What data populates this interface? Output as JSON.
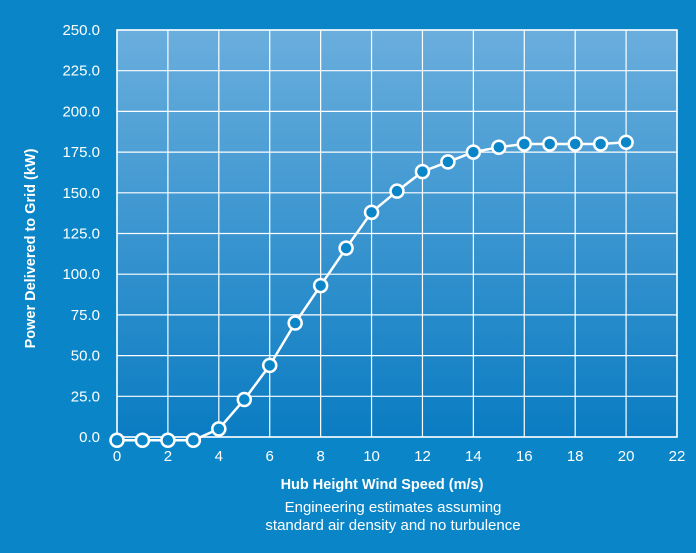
{
  "colors": {
    "background": "#0a86c8",
    "plot_top": "#6aaedd",
    "plot_bottom": "#0a7cc2",
    "line": "#ffffff",
    "marker_fill": "#0a86c8"
  },
  "chart_data": {
    "type": "line",
    "title": "",
    "xlabel": "Hub Height Wind Speed (m/s)",
    "ylabel": "Power Delivered to Grid (kW)",
    "notes": [
      "Engineering estimates assuming",
      "standard air density and no turbulence"
    ],
    "xlim": [
      0,
      22
    ],
    "ylim": [
      0,
      250
    ],
    "xticks": [
      "0",
      "2",
      "4",
      "6",
      "8",
      "10",
      "12",
      "14",
      "16",
      "18",
      "20",
      "22"
    ],
    "yticks": [
      "0.0",
      "25.0",
      "50.0",
      "75.0",
      "100.0",
      "125.0",
      "150.0",
      "175.0",
      "200.0",
      "225.0",
      "250.0"
    ],
    "grid": true,
    "series": [
      {
        "x": [
          0,
          1,
          2,
          3,
          4,
          5,
          6,
          7,
          8,
          9,
          10,
          11,
          12,
          13,
          14,
          15,
          16,
          17,
          18,
          19,
          20
        ],
        "values": [
          -2,
          -2,
          -2,
          -2,
          5,
          23,
          44,
          70,
          93,
          116,
          138,
          151,
          163,
          169,
          175,
          178,
          180,
          180,
          180,
          180,
          181
        ]
      }
    ]
  }
}
